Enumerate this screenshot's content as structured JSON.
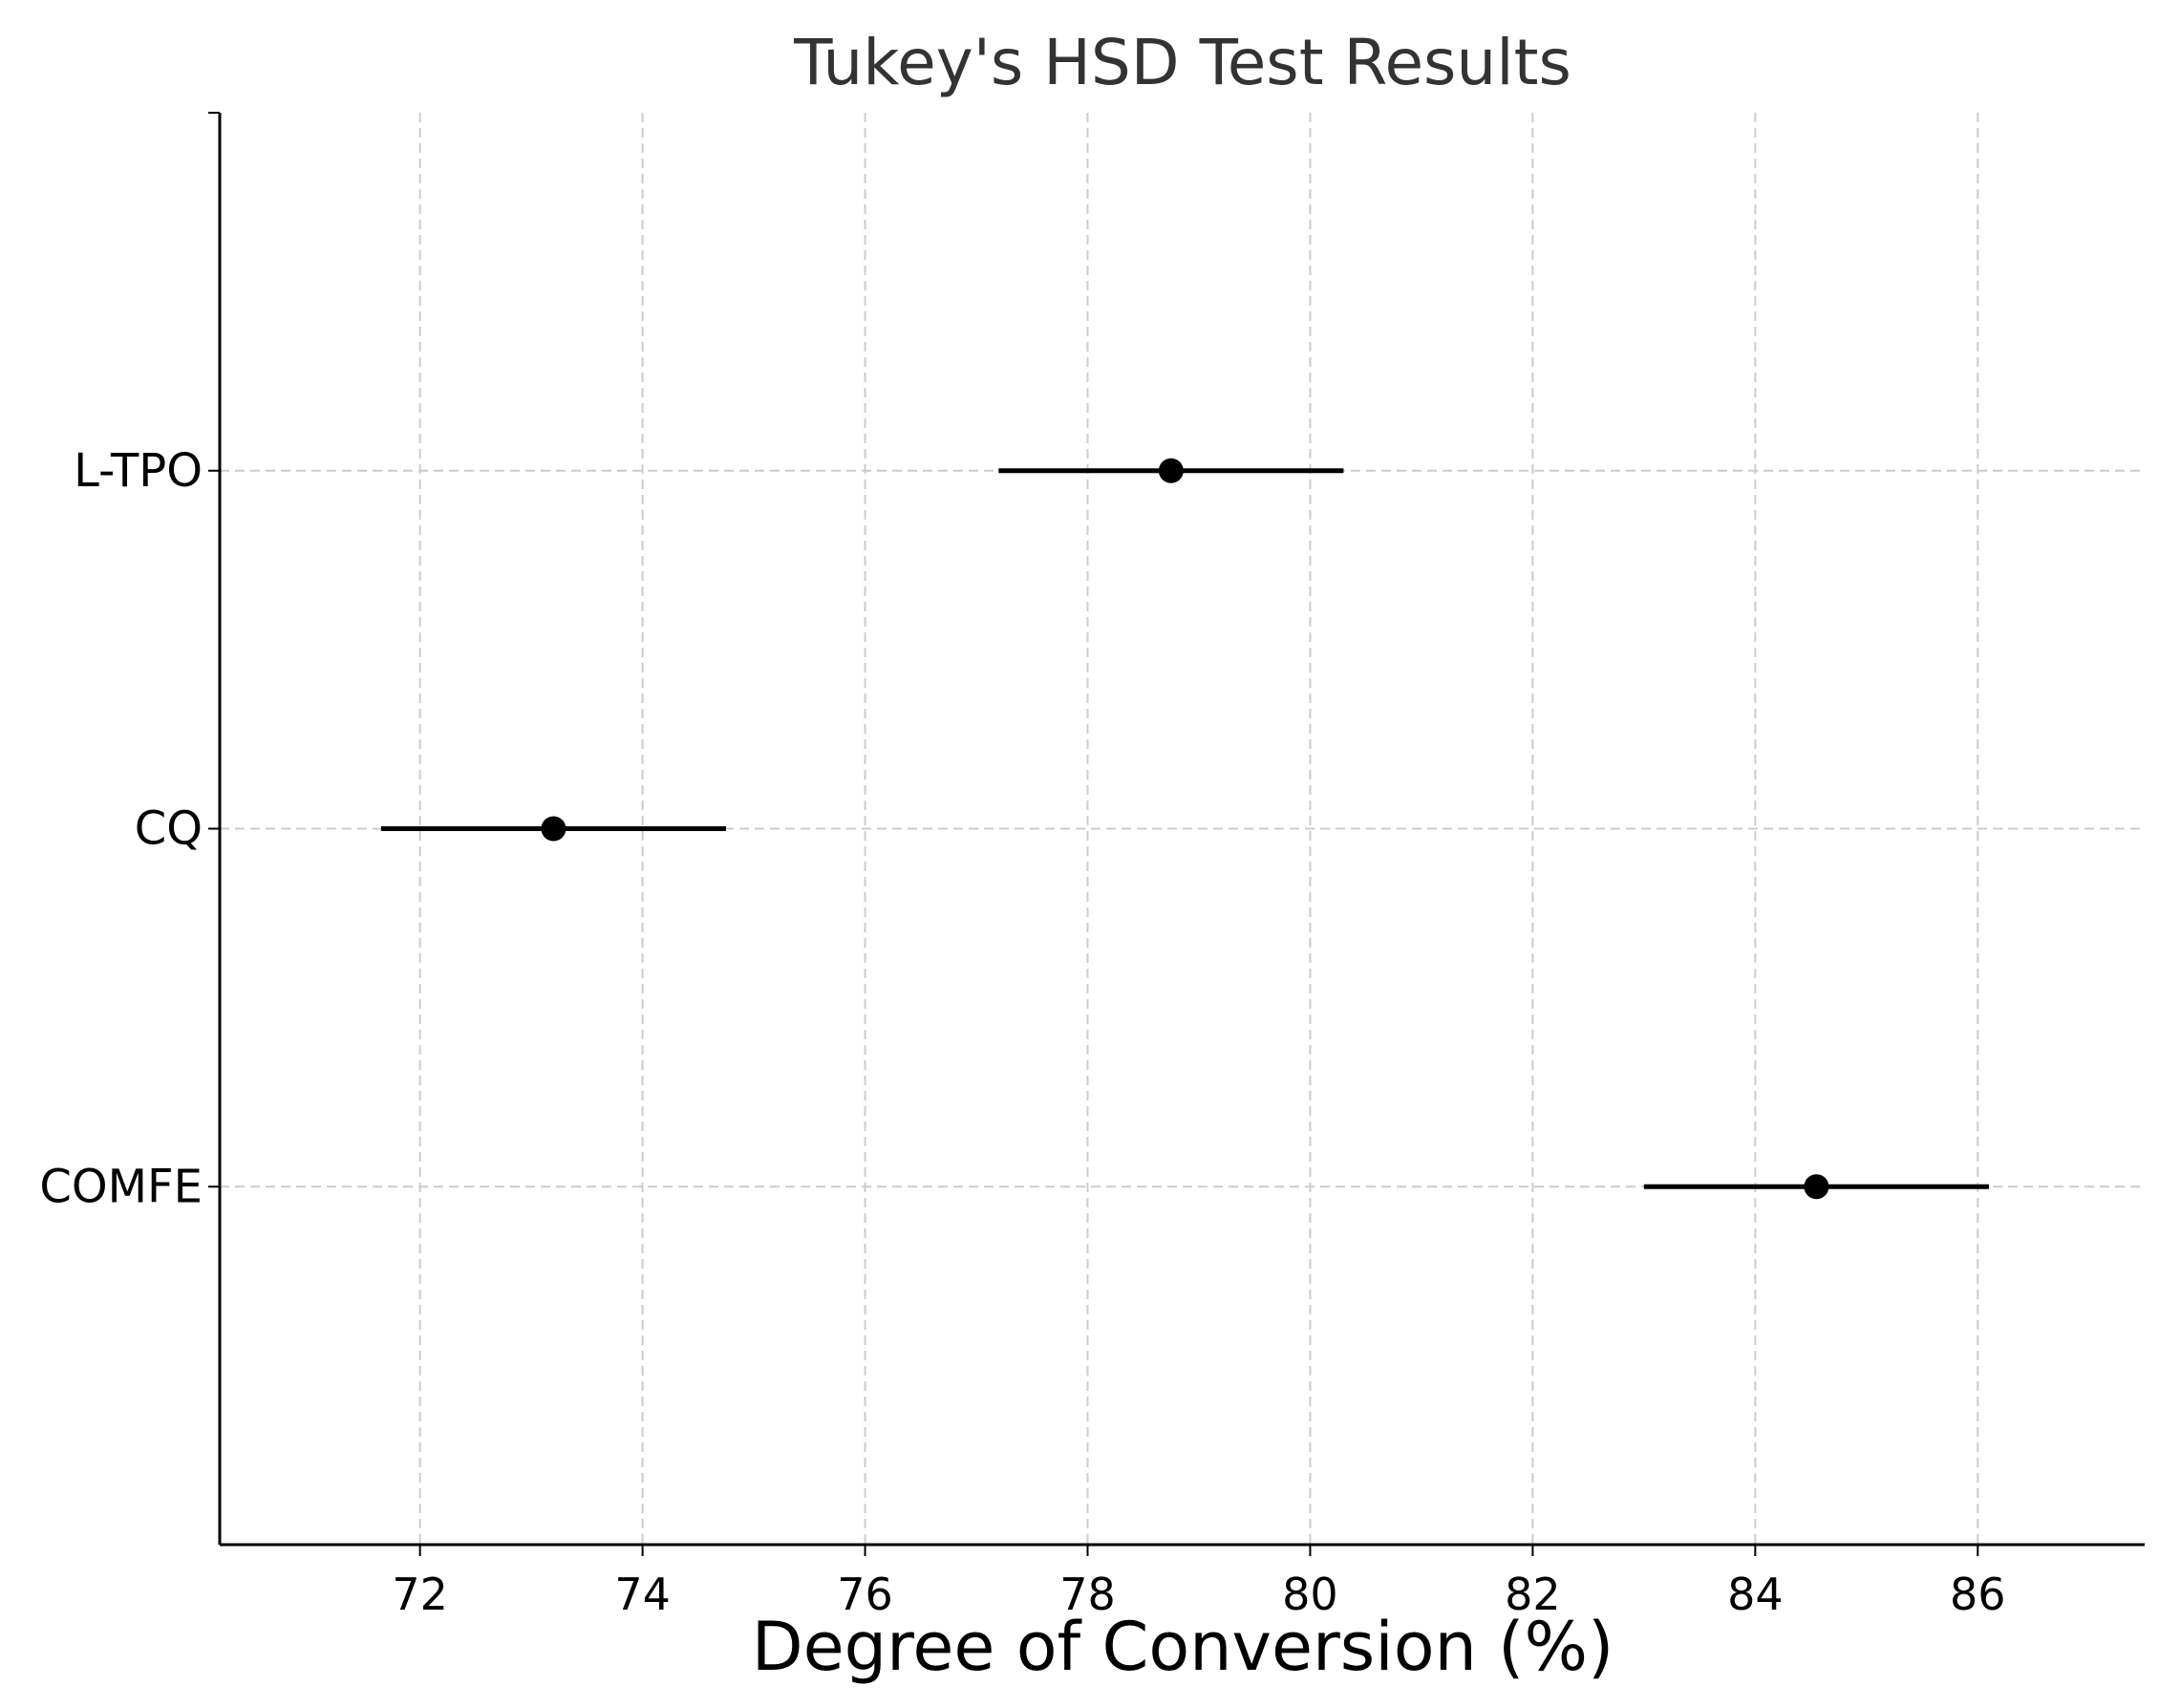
{
  "chart_data": {
    "type": "scatter",
    "title": "Tukey's HSD Test Results",
    "xlabel": "Degree of Conversion (%)",
    "ylabel": "",
    "xlim": [
      70.2,
      87.5
    ],
    "x_ticks": [
      72,
      74,
      76,
      78,
      80,
      82,
      84,
      86
    ],
    "categories": [
      "COMFE",
      "CQ",
      "L-TPO"
    ],
    "points": [
      {
        "group": "COMFE",
        "mean": 84.55,
        "lower": 83.0,
        "upper": 86.1
      },
      {
        "group": "CQ",
        "mean": 73.2,
        "lower": 71.65,
        "upper": 74.75
      },
      {
        "group": "L-TPO",
        "mean": 78.75,
        "lower": 77.2,
        "upper": 80.3
      }
    ],
    "grid": true,
    "legend": "none",
    "colors": {
      "marker": "#000000",
      "grid": "#cccccc",
      "axis": "#000000",
      "title": "#333333"
    }
  }
}
